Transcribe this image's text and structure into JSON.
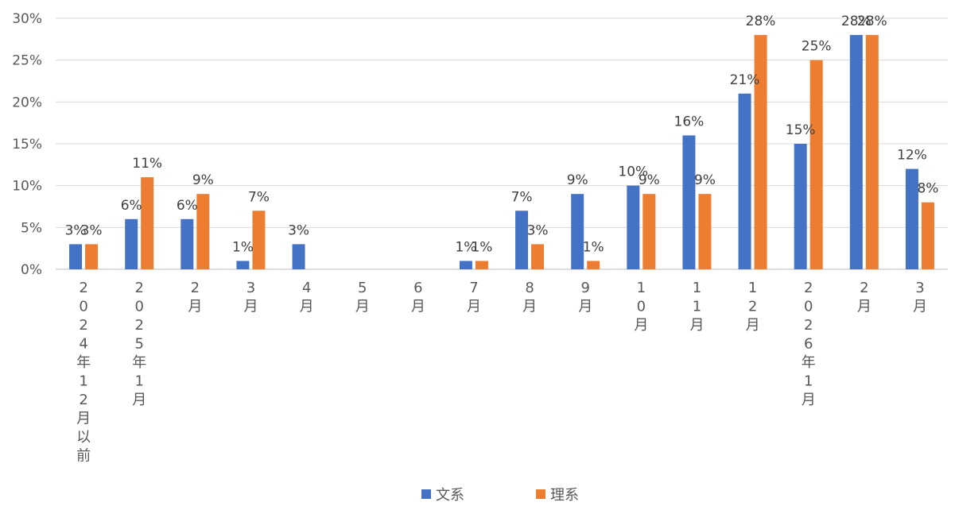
{
  "chart_data": {
    "type": "bar",
    "categories": [
      "2024年12月以前",
      "2025年1月",
      "2月",
      "3月",
      "4月",
      "5月",
      "6月",
      "7月",
      "8月",
      "9月",
      "10月",
      "11月",
      "12月",
      "2026年1月",
      "2月",
      "3月"
    ],
    "series": [
      {
        "name": "文系",
        "color": "#4472C4",
        "values": [
          3,
          6,
          6,
          1,
          3,
          0,
          0,
          1,
          7,
          9,
          10,
          16,
          21,
          15,
          28,
          12
        ],
        "labels": [
          "3%",
          "6%",
          "6%",
          "1%",
          "3%",
          "",
          "",
          "1%",
          "7%",
          "9%",
          "10%",
          "16%",
          "21%",
          "15%",
          "28%",
          "12%"
        ]
      },
      {
        "name": "理系",
        "color": "#ED7D31",
        "values": [
          3,
          11,
          9,
          7,
          0,
          0,
          0,
          1,
          3,
          1,
          9,
          9,
          28,
          25,
          28,
          8
        ],
        "labels": [
          "3%",
          "11%",
          "9%",
          "7%",
          "",
          "",
          "",
          "1%",
          "3%",
          "1%",
          "9%",
          "9%",
          "28%",
          "25%",
          "28%",
          "8%"
        ]
      }
    ],
    "yticks": [
      "0%",
      "5%",
      "10%",
      "15%",
      "20%",
      "25%",
      "30%"
    ],
    "ylim": [
      0,
      30
    ],
    "grid": true,
    "legend_position": "bottom"
  }
}
